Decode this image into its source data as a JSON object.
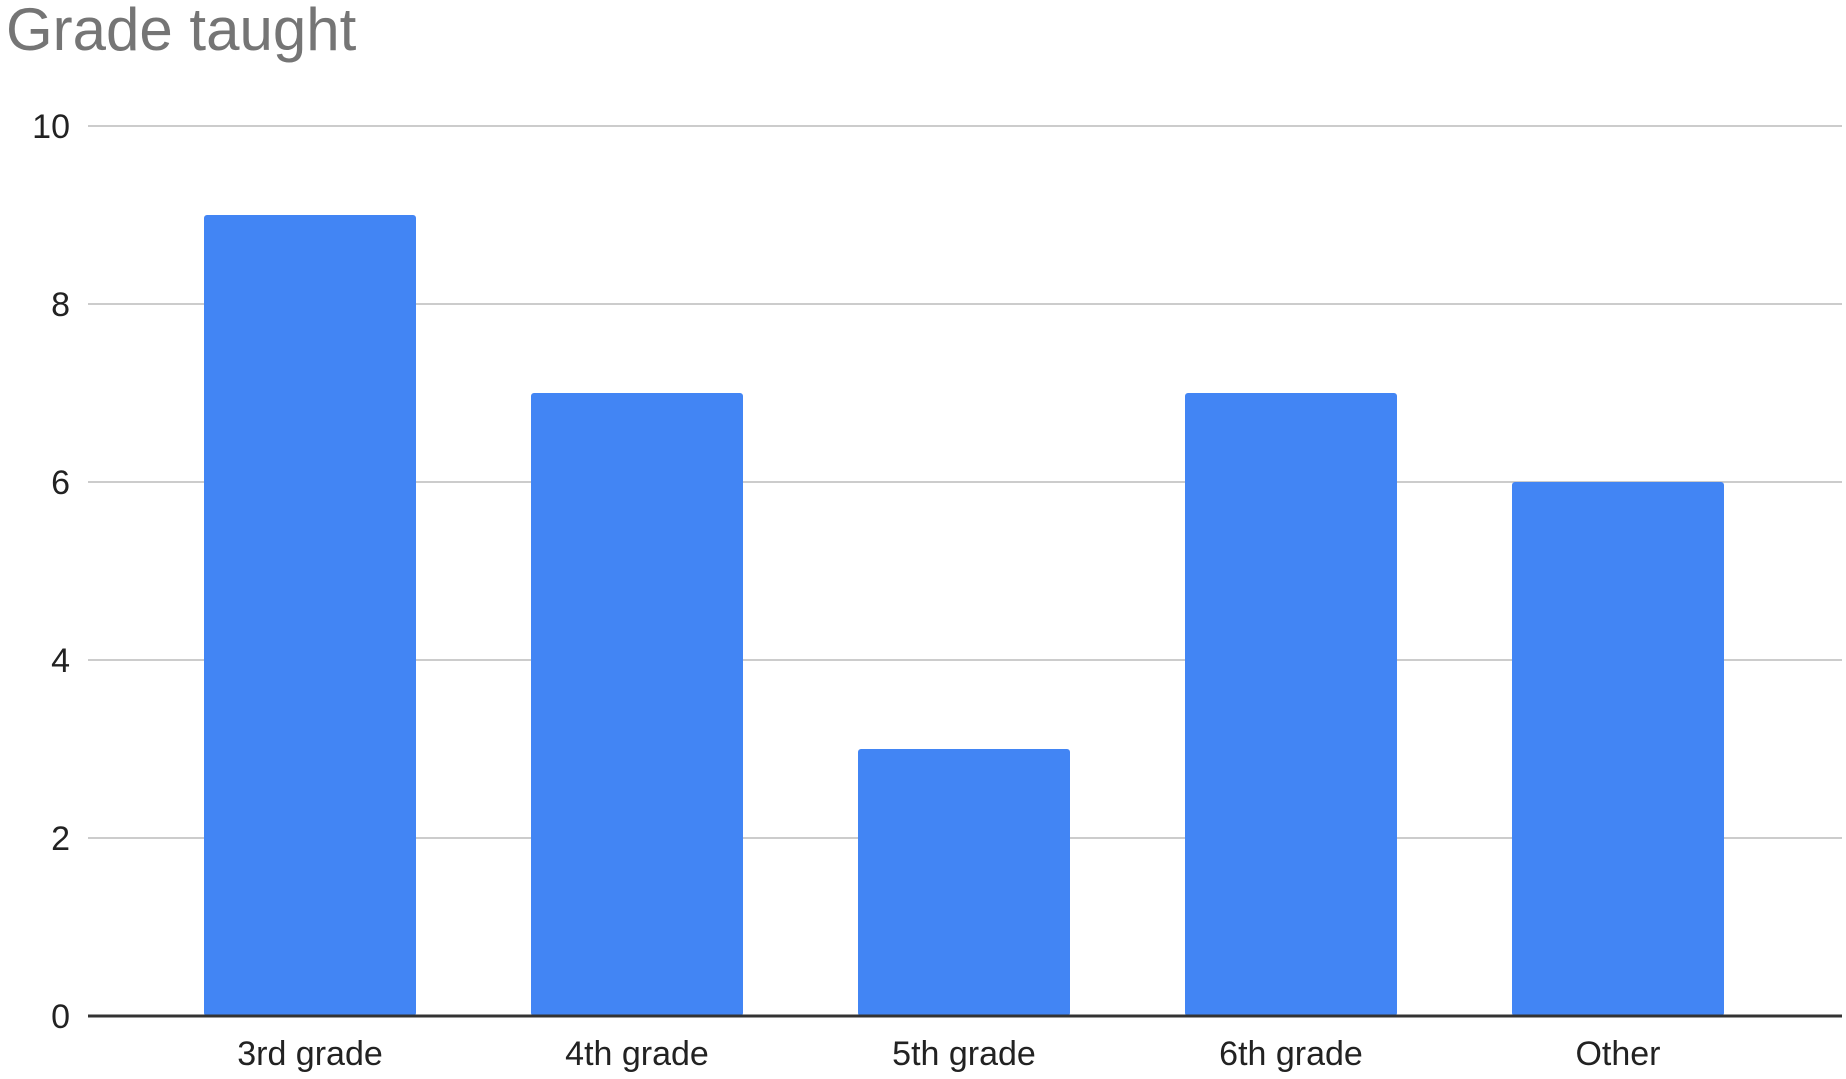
{
  "chart_data": {
    "type": "bar",
    "title": "Grade taught",
    "xlabel": "",
    "ylabel": "",
    "categories": [
      "3rd grade",
      "4th grade",
      "5th grade",
      "6th grade",
      "Other"
    ],
    "values": [
      9,
      7,
      3,
      7,
      6
    ],
    "ylim": [
      0,
      10
    ],
    "yticks": [
      0,
      2,
      4,
      6,
      8,
      10
    ],
    "grid": true,
    "legend": "none",
    "bar_color": "#4285f4"
  }
}
